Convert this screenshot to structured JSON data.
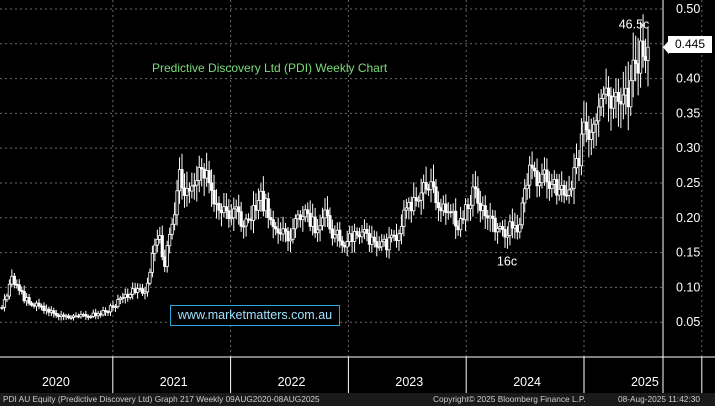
{
  "chart_data": {
    "type": "candlestick",
    "title": "Predictive Discovery Ltd (PDI) Weekly Chart",
    "x_labels": [
      "2020",
      "2021",
      "2022",
      "2023",
      "2024",
      "2025"
    ],
    "y_ticks": [
      "0.50",
      "0.45",
      "0.40",
      "0.35",
      "0.30",
      "0.25",
      "0.20",
      "0.15",
      "0.10",
      "0.05"
    ],
    "ylim": [
      0.0,
      0.51
    ],
    "last_price_label": "0.445",
    "last_price": 0.445,
    "annotations": [
      {
        "label": "46.5c",
        "value": 0.465
      },
      {
        "label": "16c",
        "value": 0.16
      }
    ],
    "watermark": "www.marketmatters.com.au",
    "grid": true,
    "series_colors": {
      "candles": "#ffffff",
      "grid": "#6a6a6a",
      "title": "#7bdc7b"
    },
    "weekly_close_keypoints": [
      [
        0,
        0.07
      ],
      [
        2,
        0.09
      ],
      [
        4,
        0.115
      ],
      [
        6,
        0.1
      ],
      [
        9,
        0.085
      ],
      [
        13,
        0.075
      ],
      [
        17,
        0.07
      ],
      [
        21,
        0.062
      ],
      [
        25,
        0.058
      ],
      [
        30,
        0.057
      ],
      [
        36,
        0.06
      ],
      [
        42,
        0.065
      ],
      [
        47,
        0.08
      ],
      [
        52,
        0.092
      ],
      [
        55,
        0.095
      ],
      [
        58,
        0.09
      ],
      [
        61,
        0.145
      ],
      [
        64,
        0.17
      ],
      [
        66,
        0.135
      ],
      [
        69,
        0.19
      ],
      [
        72,
        0.26
      ],
      [
        75,
        0.235
      ],
      [
        78,
        0.24
      ],
      [
        80,
        0.27
      ],
      [
        83,
        0.255
      ],
      [
        86,
        0.22
      ],
      [
        89,
        0.215
      ],
      [
        92,
        0.205
      ],
      [
        95,
        0.21
      ],
      [
        98,
        0.19
      ],
      [
        101,
        0.2
      ],
      [
        104,
        0.23
      ],
      [
        107,
        0.22
      ],
      [
        110,
        0.19
      ],
      [
        113,
        0.18
      ],
      [
        116,
        0.17
      ],
      [
        119,
        0.19
      ],
      [
        122,
        0.21
      ],
      [
        125,
        0.195
      ],
      [
        128,
        0.185
      ],
      [
        131,
        0.2
      ],
      [
        134,
        0.18
      ],
      [
        137,
        0.17
      ],
      [
        140,
        0.165
      ],
      [
        143,
        0.175
      ],
      [
        146,
        0.18
      ],
      [
        149,
        0.17
      ],
      [
        152,
        0.155
      ],
      [
        155,
        0.16
      ],
      [
        158,
        0.17
      ],
      [
        161,
        0.175
      ],
      [
        163,
        0.205
      ],
      [
        165,
        0.215
      ],
      [
        168,
        0.22
      ],
      [
        171,
        0.24
      ],
      [
        174,
        0.24
      ],
      [
        177,
        0.225
      ],
      [
        180,
        0.21
      ],
      [
        183,
        0.2
      ],
      [
        186,
        0.19
      ],
      [
        189,
        0.225
      ],
      [
        192,
        0.24
      ],
      [
        195,
        0.21
      ],
      [
        198,
        0.195
      ],
      [
        201,
        0.185
      ],
      [
        204,
        0.17
      ],
      [
        207,
        0.19
      ],
      [
        209,
        0.18
      ],
      [
        211,
        0.21
      ],
      [
        213,
        0.255
      ],
      [
        215,
        0.28
      ],
      [
        217,
        0.26
      ],
      [
        220,
        0.27
      ],
      [
        223,
        0.25
      ],
      [
        226,
        0.24
      ],
      [
        229,
        0.24
      ],
      [
        232,
        0.265
      ],
      [
        234,
        0.28
      ],
      [
        236,
        0.35
      ],
      [
        238,
        0.33
      ],
      [
        240,
        0.32
      ],
      [
        242,
        0.38
      ],
      [
        244,
        0.38
      ],
      [
        246,
        0.36
      ],
      [
        248,
        0.39
      ],
      [
        250,
        0.35
      ],
      [
        252,
        0.38
      ],
      [
        254,
        0.37
      ],
      [
        256,
        0.41
      ],
      [
        258,
        0.43
      ],
      [
        260,
        0.44
      ],
      [
        262,
        0.445
      ]
    ]
  },
  "footer": {
    "left": "PDI AU Equity (Predictive Discovery Ltd) Graph 217  Weekly 09AUG2020-08AUG2025",
    "mid": "Copyright© 2025 Bloomberg Finance L.P.",
    "right": "08-Aug-2025 11:42:30"
  }
}
